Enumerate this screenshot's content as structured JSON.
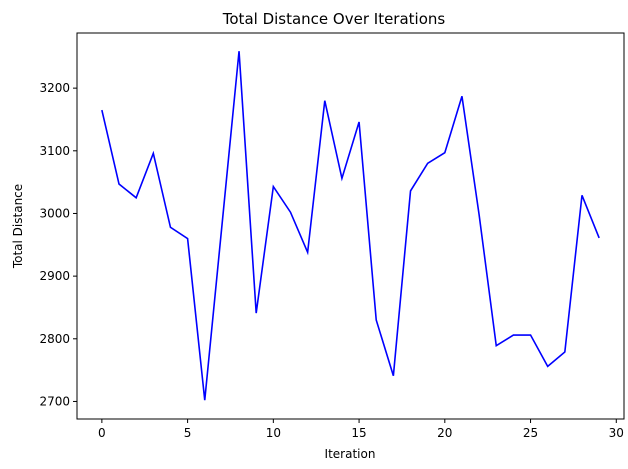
{
  "chart_data": {
    "type": "line",
    "title": "Total Distance Over Iterations",
    "xlabel": "Iteration",
    "ylabel": "Total Distance",
    "xlim": [
      -1.45,
      30.45
    ],
    "ylim": [
      2672,
      3288
    ],
    "xticks": [
      0,
      5,
      10,
      15,
      20,
      25,
      30
    ],
    "yticks": [
      2700,
      2800,
      2900,
      3000,
      3100,
      3200
    ],
    "grid": false,
    "line_color": "#0000ff",
    "series": [
      {
        "x": [
          0,
          1,
          2,
          3,
          4,
          5,
          6,
          7,
          8,
          9,
          10,
          11,
          12,
          13,
          14,
          15,
          16,
          17,
          18,
          19,
          20,
          21,
          22,
          23,
          24,
          25,
          26,
          27,
          28,
          29
        ],
        "values": [
          3165,
          3047,
          3025,
          3096,
          2978,
          2960,
          2702,
          2980,
          3259,
          2841,
          3043,
          3002,
          2938,
          3180,
          3056,
          3146,
          2830,
          2741,
          3036,
          3080,
          3097,
          3187,
          2998,
          2789,
          2806,
          2806,
          2756,
          2779,
          3029,
          2961
        ]
      }
    ]
  }
}
